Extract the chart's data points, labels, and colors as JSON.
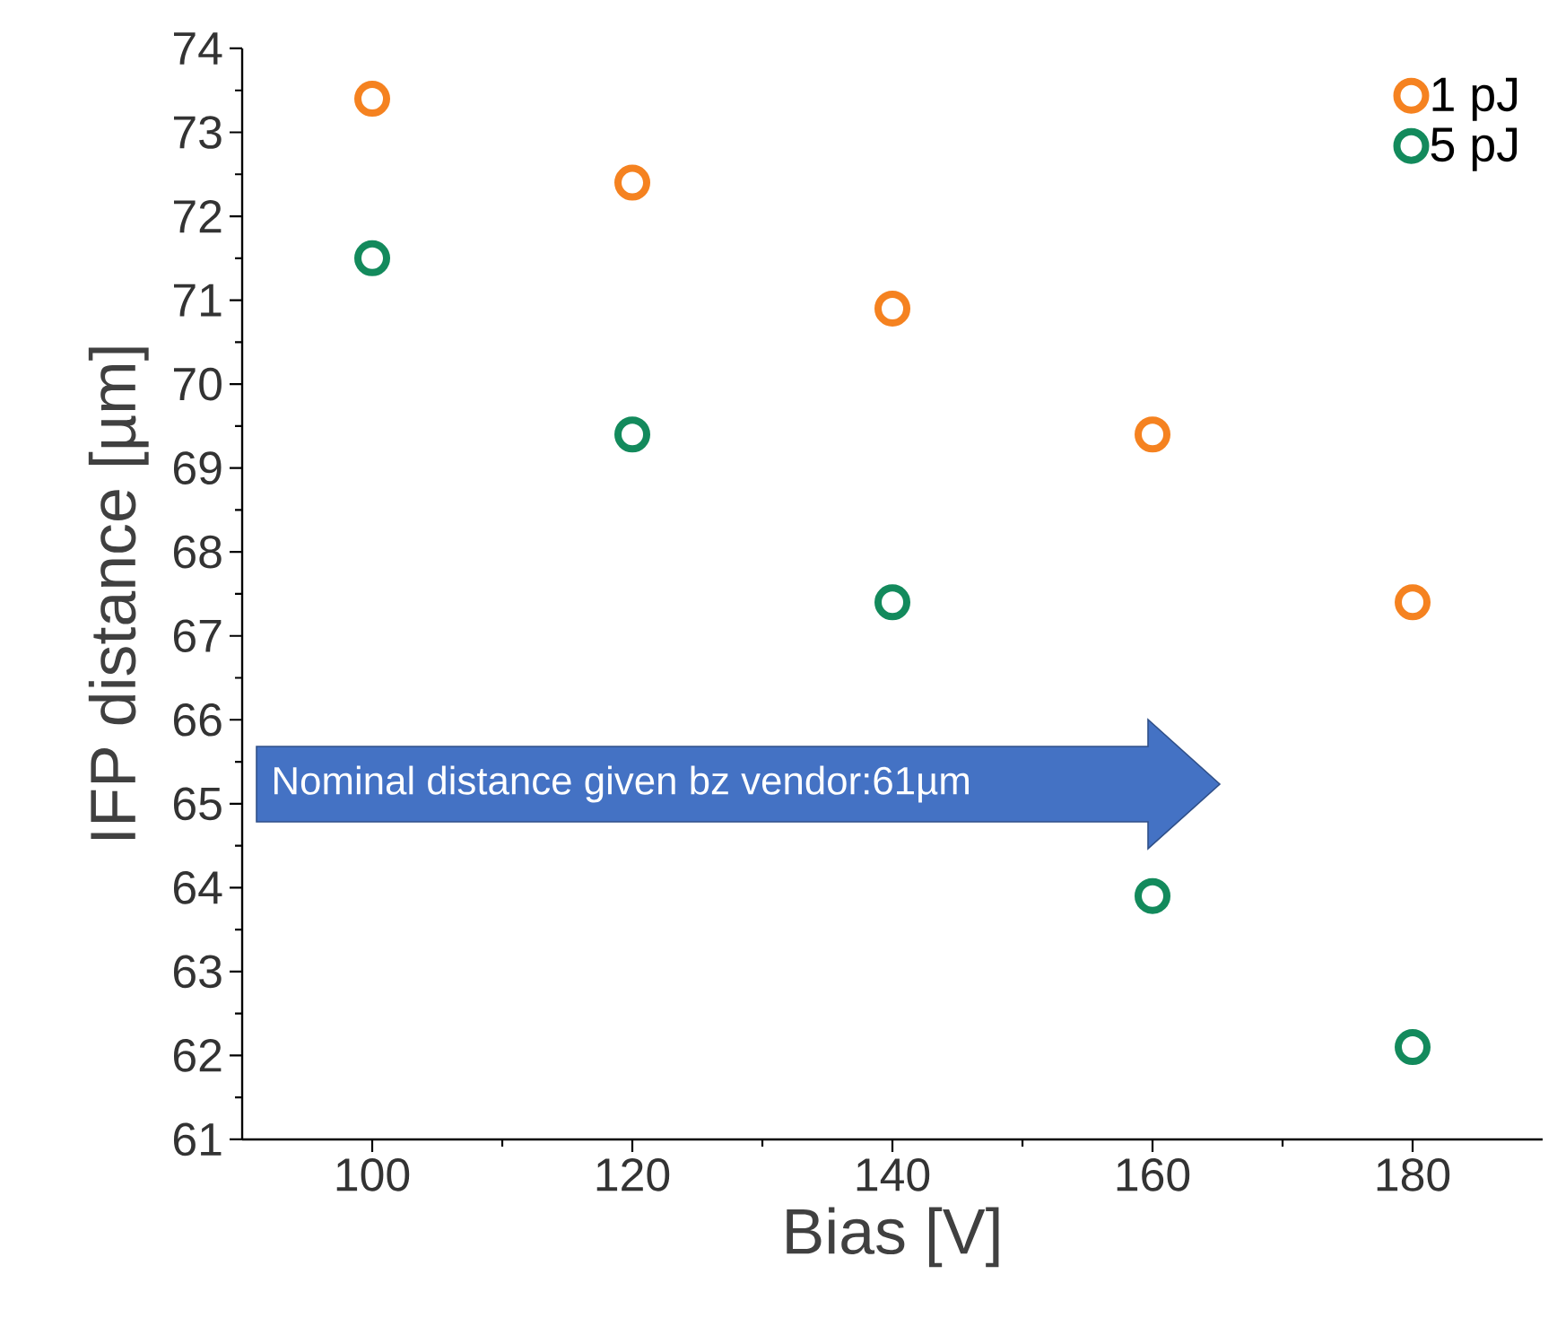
{
  "chart_data": {
    "type": "scatter",
    "xlabel": "Bias [V]",
    "ylabel": "IFP distance [µm]",
    "x": [
      100,
      120,
      140,
      160,
      180
    ],
    "series": [
      {
        "name": "1 pJ",
        "color": "#f58220",
        "values": [
          73.4,
          72.4,
          70.9,
          69.4,
          67.4
        ]
      },
      {
        "name": "5 pJ",
        "color": "#138a5c",
        "values": [
          71.5,
          69.4,
          67.4,
          63.9,
          62.1
        ]
      }
    ],
    "xlim": [
      90,
      190
    ],
    "xticks": [
      100,
      120,
      140,
      160,
      180
    ],
    "ylim": [
      61,
      74
    ],
    "yticks": [
      61,
      62,
      63,
      64,
      65,
      66,
      67,
      68,
      69,
      70,
      71,
      72,
      73,
      74
    ],
    "marker": "circle",
    "legend": "top right",
    "annotations": [
      "Nominal distance given bz vendor:61µm"
    ]
  }
}
